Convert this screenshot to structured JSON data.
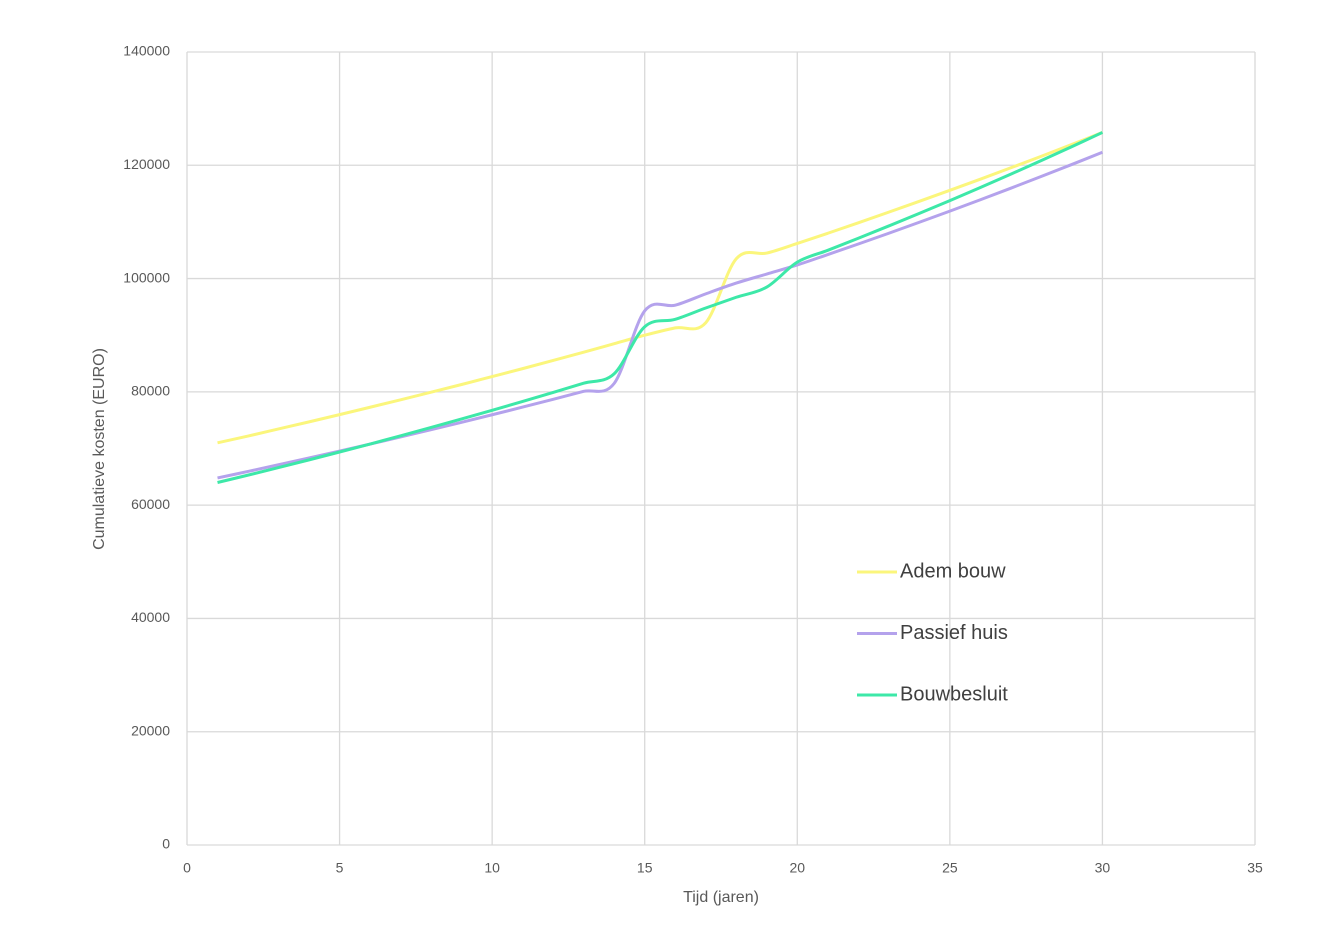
{
  "chart_data": {
    "type": "line",
    "x_label": "Tijd (jaren)",
    "y_label": "Cumulatieve kosten (EURO)",
    "x": [
      1,
      2,
      3,
      4,
      5,
      6,
      7,
      8,
      9,
      10,
      11,
      12,
      13,
      14,
      15,
      16,
      17,
      18,
      19,
      20,
      21,
      22,
      23,
      24,
      25,
      26,
      27,
      28,
      29,
      30
    ],
    "series": [
      {
        "name": "Adem bouw",
        "color": "#fbf67c",
        "values": [
          71000,
          72200,
          73450,
          74700,
          75980,
          77280,
          78600,
          79940,
          81300,
          82700,
          84100,
          85540,
          87000,
          88500,
          90000,
          91300,
          92200,
          103500,
          104500,
          106200,
          108000,
          109850,
          111730,
          113640,
          115580,
          117550,
          119560,
          121600,
          123680,
          125800
        ]
      },
      {
        "name": "Passief huis",
        "color": "#b4a2ec",
        "values": [
          64800,
          65950,
          67130,
          68320,
          69540,
          70780,
          72040,
          73320,
          74630,
          75960,
          77310,
          78690,
          80090,
          81500,
          94300,
          95300,
          97300,
          99200,
          100800,
          102400,
          104240,
          106100,
          108000,
          109940,
          111910,
          113920,
          115960,
          118040,
          120150,
          122300
        ]
      },
      {
        "name": "Bouwbesluit",
        "color": "#3de8a8",
        "values": [
          64000,
          65300,
          66630,
          67990,
          69380,
          70790,
          72240,
          73710,
          75210,
          76740,
          78310,
          79900,
          81530,
          83200,
          91500,
          92800,
          94800,
          96700,
          98500,
          102900,
          104990,
          107120,
          109290,
          111510,
          113770,
          116080,
          118440,
          120840,
          123290,
          125800
        ]
      }
    ],
    "xlim": [
      0,
      35
    ],
    "xticks": [
      0,
      5,
      10,
      15,
      20,
      25,
      30,
      35
    ],
    "ylim": [
      0,
      140000
    ],
    "yticks": [
      0,
      20000,
      40000,
      60000,
      80000,
      100000,
      120000,
      140000
    ],
    "grid": true,
    "legend": "center-right"
  }
}
